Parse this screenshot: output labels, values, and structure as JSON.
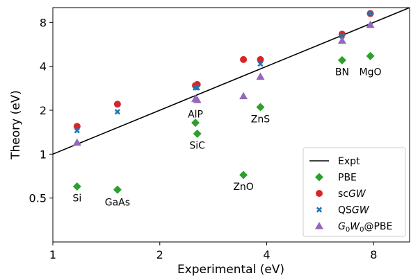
{
  "chart_data": {
    "type": "scatter",
    "xlabel": "Experimental (eV)",
    "ylabel": "Theory (eV)",
    "xscale": "log2",
    "yscale": "log2",
    "xlim": [
      1,
      10.1
    ],
    "ylim": [
      0.25,
      10.1
    ],
    "xticks": [
      1,
      2,
      4,
      8
    ],
    "xticklabels": [
      "1",
      "2",
      "4",
      "8"
    ],
    "yticks": [
      0.5,
      1,
      2,
      4,
      8
    ],
    "yticklabels": [
      "0.5",
      "1",
      "2",
      "4",
      "8"
    ],
    "grid": false,
    "legend_position": "bottom-right",
    "reference_line": {
      "name": "Expt",
      "color": "#000000",
      "x": [
        1,
        10.1
      ],
      "y": [
        1,
        10.1
      ]
    },
    "series": [
      {
        "name": "PBE",
        "marker": "diamond",
        "color": "#2ca02c",
        "points": [
          [
            1.17,
            0.6
          ],
          [
            1.52,
            0.57
          ],
          [
            2.52,
            1.64
          ],
          [
            2.55,
            1.38
          ],
          [
            3.44,
            0.72
          ],
          [
            3.84,
            2.1
          ],
          [
            6.52,
            4.4
          ],
          [
            7.83,
            4.7
          ]
        ]
      },
      {
        "name": "scGW",
        "marker": "circle",
        "color": "#d62728",
        "points": [
          [
            1.17,
            1.55
          ],
          [
            1.52,
            2.2
          ],
          [
            2.52,
            2.95
          ],
          [
            2.55,
            3.0
          ],
          [
            3.44,
            4.45
          ],
          [
            3.84,
            4.45
          ],
          [
            6.52,
            6.65
          ],
          [
            7.83,
            9.2
          ]
        ]
      },
      {
        "name": "QSGW",
        "marker": "x",
        "color": "#1f77b4",
        "points": [
          [
            1.17,
            1.45
          ],
          [
            1.52,
            1.95
          ],
          [
            2.52,
            2.85
          ],
          [
            2.55,
            2.85
          ],
          [
            3.84,
            4.15
          ],
          [
            6.52,
            6.45
          ],
          [
            7.83,
            9.25
          ]
        ]
      },
      {
        "name": "G0W0@PBE",
        "marker": "triangle",
        "color": "#9467bd",
        "points": [
          [
            1.17,
            1.2
          ],
          [
            1.52,
            null
          ],
          [
            2.52,
            2.4
          ],
          [
            2.55,
            2.35
          ],
          [
            3.44,
            2.5
          ],
          [
            3.84,
            3.4
          ],
          [
            6.52,
            6.0
          ],
          [
            7.83,
            7.7
          ]
        ]
      }
    ],
    "annotations": [
      {
        "text": "Si",
        "x": 1.17,
        "y": 0.5
      },
      {
        "text": "GaAs",
        "x": 1.52,
        "y": 0.47
      },
      {
        "text": "AlP",
        "x": 2.52,
        "y": 1.88
      },
      {
        "text": "SiC",
        "x": 2.55,
        "y": 1.15
      },
      {
        "text": "ZnO",
        "x": 3.44,
        "y": 0.6
      },
      {
        "text": "ZnS",
        "x": 3.84,
        "y": 1.74
      },
      {
        "text": "BN",
        "x": 6.52,
        "y": 3.67
      },
      {
        "text": "MgO",
        "x": 7.83,
        "y": 3.67
      }
    ]
  }
}
